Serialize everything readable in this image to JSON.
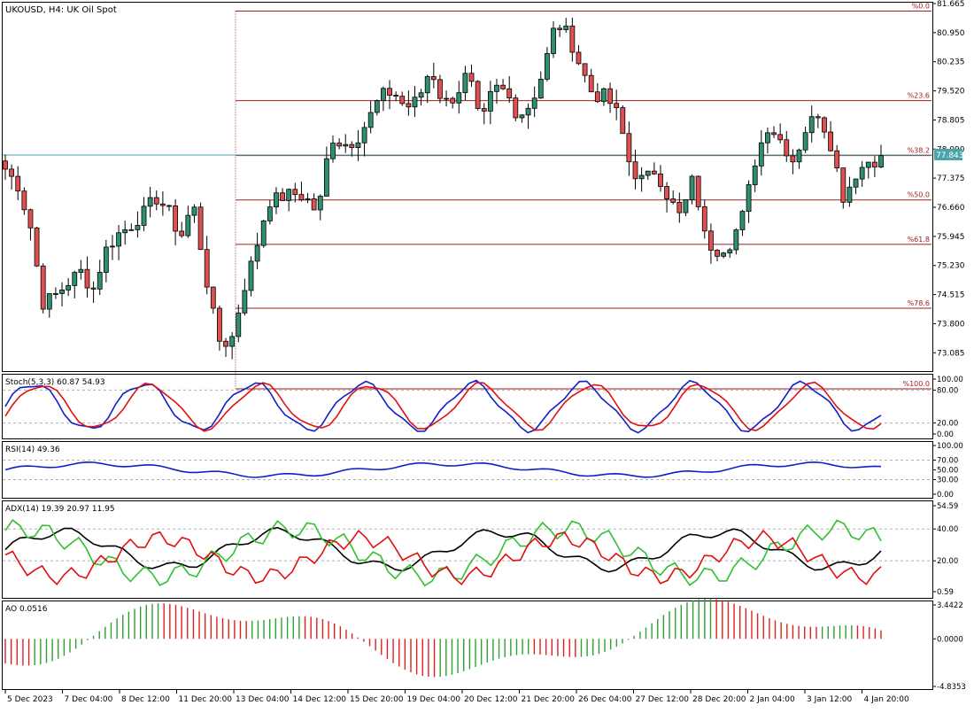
{
  "chart_title": "UKOUSD, H4:  UK Oil Spot",
  "price_axis_ticks": [
    "81.665",
    "80.950",
    "80.235",
    "79.520",
    "78.805",
    "78.090",
    "77.375",
    "76.660",
    "75.945",
    "75.230",
    "74.515",
    "73.800",
    "73.085"
  ],
  "current_price": "77.843",
  "fibonacci": {
    "levels": [
      {
        "label": "%0.0",
        "price": 81.48
      },
      {
        "label": "%23.6",
        "price": 79.28
      },
      {
        "label": "%38.2",
        "price": 77.93
      },
      {
        "label": "%50.0",
        "price": 76.84
      },
      {
        "label": "%61.8",
        "price": 75.75
      },
      {
        "label": "%78.6",
        "price": 74.18
      },
      {
        "label": "%100.0",
        "price": 72.2
      }
    ]
  },
  "indicators": {
    "stoch": {
      "label": "Stoch(5,3,3) 60.87 54.93",
      "ticks": [
        "100.00",
        "80.00",
        "20.00",
        "0.00"
      ]
    },
    "rsi": {
      "label": "RSI(14) 49.36",
      "ticks": [
        "100.00",
        "70.00",
        "50.00",
        "30.00",
        "0.00"
      ]
    },
    "adx": {
      "label": "ADX(14) 19.39 20.97 11.95",
      "ticks": [
        "54.59",
        "40.00",
        "20.00",
        "0.59"
      ]
    },
    "ao": {
      "label": "AO 0.0516",
      "ticks": [
        "3.4422",
        "0.0000",
        "-4.8353"
      ]
    }
  },
  "time_axis": [
    "5 Dec 2023",
    "7 Dec 04:00",
    "8 Dec 12:00",
    "11 Dec 20:00",
    "13 Dec 04:00",
    "14 Dec 12:00",
    "15 Dec 20:00",
    "19 Dec 04:00",
    "20 Dec 12:00",
    "21 Dec 20:00",
    "26 Dec 04:00",
    "27 Dec 12:00",
    "28 Dec 20:00",
    "2 Jan 04:00",
    "3 Jan 12:00",
    "4 Jan 20:00"
  ],
  "chart_data": {
    "type": "candlestick",
    "symbol": "UKOUSD",
    "timeframe": "H4",
    "close_path": [
      77.6,
      77.2,
      76.2,
      74.3,
      74.5,
      74.8,
      75.1,
      74.6,
      75.6,
      76.0,
      76.2,
      76.5,
      76.9,
      76.6,
      75.9,
      76.8,
      75.0,
      73.4,
      73.3,
      74.6,
      75.6,
      76.8,
      76.9,
      77.0,
      76.9,
      76.5,
      78.4,
      78.2,
      78.3,
      78.8,
      79.4,
      79.5,
      79.1,
      79.3,
      80.1,
      79.2,
      79.4,
      80.0,
      78.6,
      79.6,
      79.5,
      78.9,
      79.2,
      80.0,
      81.2,
      80.9,
      80.1,
      79.4,
      79.4,
      78.9,
      77.6,
      77.3,
      77.6,
      76.9,
      76.4,
      77.4,
      75.8,
      75.6,
      75.8,
      76.5,
      77.9,
      78.7,
      78.3,
      77.8,
      78.6,
      79.0,
      78.2,
      76.9,
      77.5,
      77.8,
      77.84
    ],
    "stoch_values": [
      "60.87",
      "54.93"
    ],
    "rsi_value": "49.36",
    "adx_values": [
      "19.39",
      "20.97",
      "11.95"
    ],
    "ao_value": "0.0516"
  }
}
